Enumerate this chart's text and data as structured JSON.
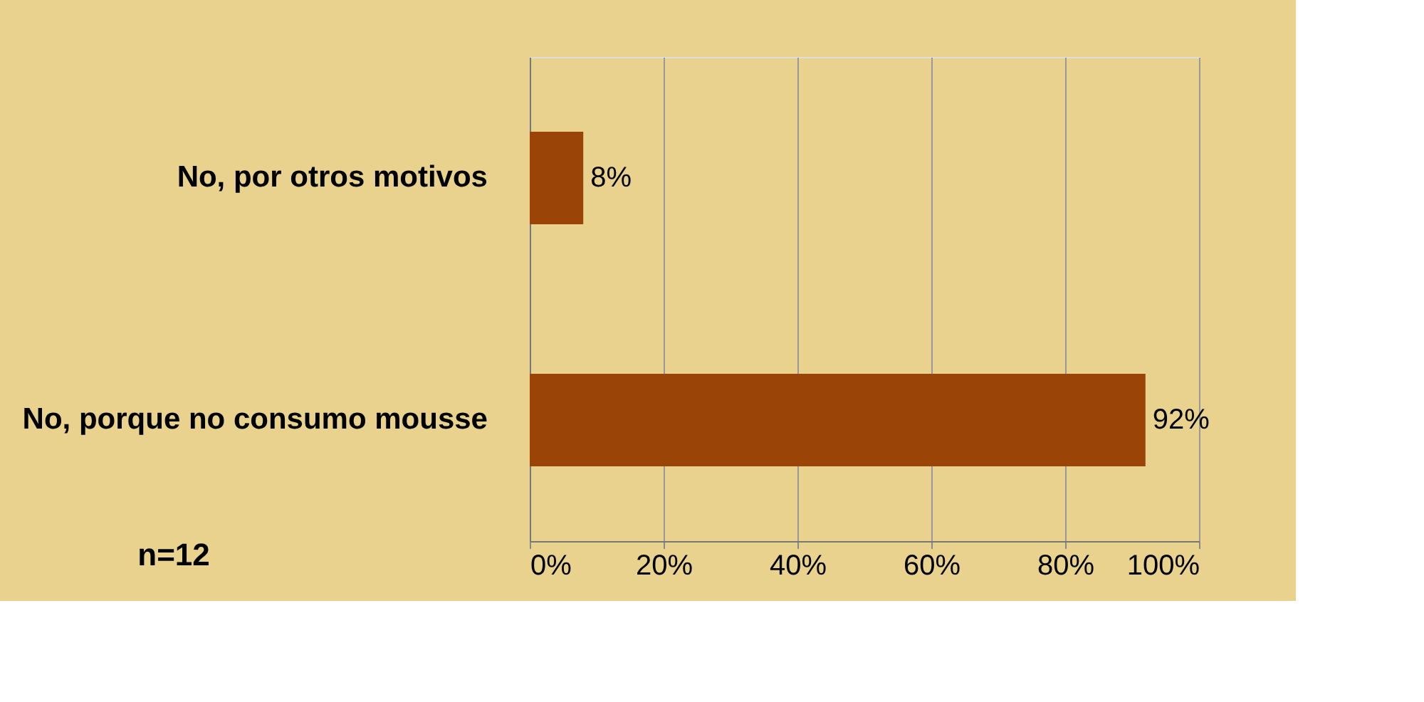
{
  "chart_data": {
    "type": "bar",
    "orientation": "horizontal",
    "categories": [
      "No, por otros motivos",
      "No, porque no consumo mousse"
    ],
    "values": [
      8,
      92
    ],
    "value_labels": [
      "8%",
      "92%"
    ],
    "color": "#9a4408",
    "xlim": [
      0,
      100
    ],
    "xticks": [
      {
        "value": 0,
        "label": "0%"
      },
      {
        "value": 20,
        "label": "20%"
      },
      {
        "value": 40,
        "label": "40%"
      },
      {
        "value": 60,
        "label": "60%"
      },
      {
        "value": 80,
        "label": "80%"
      },
      {
        "value": 100,
        "label": "100%"
      }
    ],
    "grid": "x",
    "annotations": [
      "n=12"
    ]
  }
}
